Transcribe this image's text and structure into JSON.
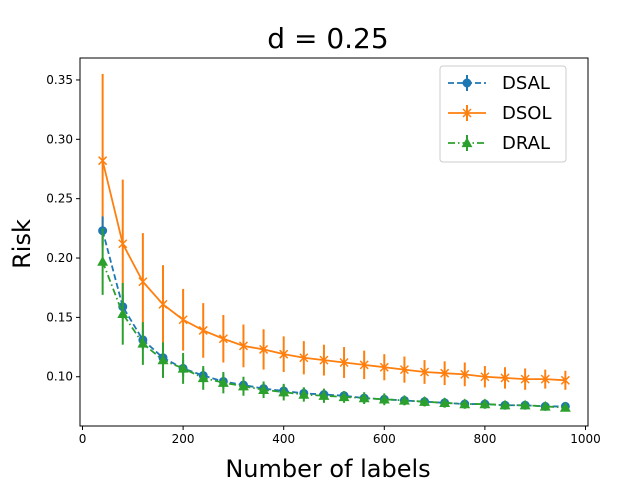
{
  "chart_data": {
    "type": "line",
    "title": "d = 0.25",
    "xlabel": "Number of labels",
    "ylabel": "Risk",
    "xlim": [
      -5,
      1005
    ],
    "ylim": [
      0.0585,
      0.3685
    ],
    "xticks": [
      0,
      200,
      400,
      600,
      800,
      1000
    ],
    "yticks": [
      0.1,
      0.15,
      0.2,
      0.25,
      0.3,
      0.35
    ],
    "grid": false,
    "legend_position": "top-right",
    "x": [
      40,
      80,
      120,
      160,
      200,
      240,
      280,
      320,
      360,
      400,
      440,
      480,
      520,
      560,
      600,
      640,
      680,
      720,
      760,
      800,
      840,
      880,
      920,
      960
    ],
    "series": [
      {
        "name": "DSAL",
        "color": "#1f77b4",
        "line_style": "dashed",
        "marker": "circle",
        "values": [
          0.223,
          0.159,
          0.131,
          0.116,
          0.107,
          0.101,
          0.096,
          0.093,
          0.09,
          0.088,
          0.086,
          0.085,
          0.084,
          0.082,
          0.081,
          0.08,
          0.079,
          0.078,
          0.077,
          0.077,
          0.076,
          0.076,
          0.075,
          0.075
        ],
        "errors": [
          0.012,
          0.01,
          0.008,
          0.007,
          0.007,
          0.006,
          0.006,
          0.005,
          0.005,
          0.005,
          0.005,
          0.004,
          0.004,
          0.004,
          0.004,
          0.004,
          0.004,
          0.004,
          0.003,
          0.003,
          0.003,
          0.003,
          0.003,
          0.003
        ]
      },
      {
        "name": "DSOL",
        "color": "#ff7f0e",
        "line_style": "solid",
        "marker": "x",
        "values": [
          0.282,
          0.212,
          0.18,
          0.161,
          0.148,
          0.139,
          0.132,
          0.126,
          0.123,
          0.119,
          0.116,
          0.114,
          0.112,
          0.11,
          0.108,
          0.106,
          0.104,
          0.103,
          0.102,
          0.1,
          0.099,
          0.098,
          0.098,
          0.097
        ],
        "errors": [
          0.073,
          0.054,
          0.041,
          0.033,
          0.026,
          0.023,
          0.02,
          0.018,
          0.017,
          0.015,
          0.014,
          0.013,
          0.013,
          0.012,
          0.011,
          0.011,
          0.01,
          0.01,
          0.01,
          0.009,
          0.009,
          0.009,
          0.008,
          0.008
        ]
      },
      {
        "name": "DRAL",
        "color": "#2ca02c",
        "line_style": "dashdot",
        "marker": "triangle",
        "values": [
          0.197,
          0.153,
          0.128,
          0.114,
          0.107,
          0.099,
          0.095,
          0.092,
          0.089,
          0.087,
          0.085,
          0.084,
          0.083,
          0.082,
          0.081,
          0.08,
          0.079,
          0.078,
          0.077,
          0.077,
          0.076,
          0.076,
          0.075,
          0.074
        ],
        "errors": [
          0.028,
          0.026,
          0.018,
          0.015,
          0.013,
          0.01,
          0.009,
          0.008,
          0.007,
          0.007,
          0.006,
          0.006,
          0.005,
          0.005,
          0.005,
          0.004,
          0.004,
          0.004,
          0.004,
          0.004,
          0.003,
          0.003,
          0.003,
          0.003
        ]
      }
    ]
  }
}
